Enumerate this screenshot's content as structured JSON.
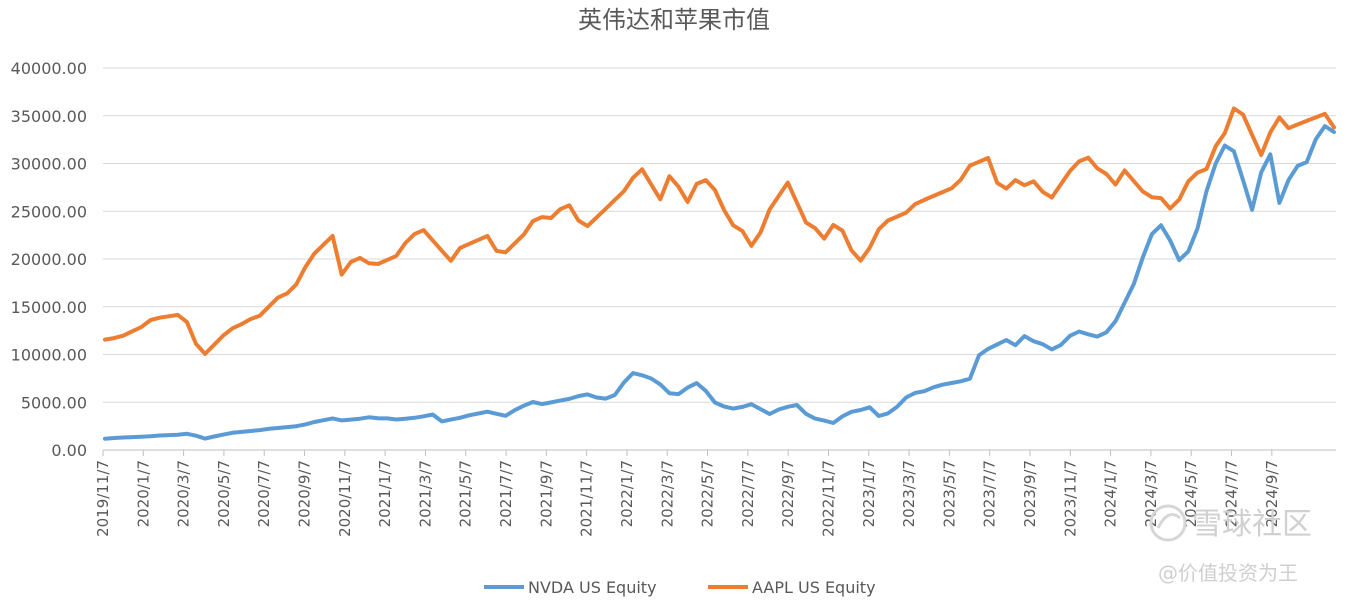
{
  "chart_data": {
    "type": "line",
    "title": "英伟达和苹果市值",
    "xlabel": "",
    "ylabel": "",
    "ylim": [
      0,
      40000
    ],
    "yticks": [
      "40000.00",
      "35000.00",
      "30000.00",
      "25000.00",
      "20000.00",
      "15000.00",
      "10000.00",
      "5000.00",
      "0.00"
    ],
    "xticks": [
      "2019/11/7",
      "2020/1/7",
      "2020/3/7",
      "2020/5/7",
      "2020/7/7",
      "2020/9/7",
      "2020/11/7",
      "2021/1/7",
      "2021/3/7",
      "2021/5/7",
      "2021/7/7",
      "2021/9/7",
      "2021/11/7",
      "2022/1/7",
      "2022/3/7",
      "2022/5/7",
      "2022/7/7",
      "2022/9/7",
      "2022/11/7",
      "2023/1/7",
      "2023/3/7",
      "2023/5/7",
      "2023/7/7",
      "2023/9/7",
      "2023/11/7",
      "2024/1/7",
      "2024/3/7",
      "2024/5/7",
      "2024/7/7",
      "2024/9/7"
    ],
    "grid": true,
    "legend_position": "bottom",
    "series": [
      {
        "name": "NVDA US Equity",
        "color": "#5b9bd5",
        "values": [
          1200,
          1250,
          1300,
          1350,
          1400,
          1450,
          1500,
          1550,
          1600,
          1700,
          1500,
          1200,
          1400,
          1600,
          1800,
          1900,
          2000,
          2100,
          2200,
          2300,
          2400,
          2500,
          2700,
          2900,
          3100,
          3300,
          3100,
          3200,
          3300,
          3400,
          3300,
          3300,
          3200,
          3300,
          3400,
          3500,
          3700,
          3000,
          3200,
          3400,
          3600,
          3800,
          4000,
          3800,
          3600,
          4200,
          4600,
          5000,
          4800,
          5000,
          5200,
          5400,
          5600,
          5800,
          5500,
          5400,
          5800,
          7000,
          8000,
          7800,
          7500,
          6900,
          6000,
          5800,
          6500,
          7000,
          6200,
          5000,
          4600,
          4300,
          4500,
          4800,
          4300,
          3800,
          4200,
          4500,
          4700,
          3800,
          3300,
          3100,
          2800,
          3500,
          4000,
          4200,
          4500,
          3600,
          3800,
          4500,
          5500,
          6000,
          6200,
          6500,
          6800,
          7000,
          7200,
          7500,
          10000,
          10500,
          11000,
          11500,
          11000,
          12000,
          11500,
          11000,
          10500,
          11000,
          12000,
          12500,
          12000,
          11800,
          12300,
          13500,
          15500,
          17500,
          20000,
          22500,
          23500,
          22000,
          20000,
          21000,
          23000,
          27000,
          30000,
          32000,
          31500,
          28000,
          25000,
          29000,
          31000,
          26000,
          28500,
          29500,
          30000,
          32500,
          34000,
          33500
        ]
      },
      {
        "name": "AAPL US Equity",
        "color": "#ed7d31",
        "values": [
          11500,
          11700,
          12000,
          12500,
          13000,
          13500,
          13800,
          14000,
          14200,
          13500,
          11000,
          10000,
          11000,
          12000,
          12800,
          13300,
          13600,
          14000,
          15000,
          16000,
          16500,
          17500,
          19000,
          20500,
          21500,
          22500,
          18500,
          19500,
          20000,
          19500,
          19500,
          20000,
          20500,
          21500,
          22500,
          23000,
          22000,
          21000,
          20000,
          21000,
          21500,
          22000,
          22500,
          21000,
          20500,
          21500,
          22500,
          24000,
          24500,
          24500,
          25000,
          25500,
          24000,
          23500,
          24500,
          25500,
          26000,
          27000,
          28500,
          29500,
          28000,
          26000,
          28500,
          27500,
          26000,
          28000,
          28500,
          27000,
          25000,
          23500,
          23000,
          21500,
          23000,
          25000,
          26500,
          28000,
          26000,
          24000,
          23000,
          22000,
          23500,
          23000,
          21000,
          20000,
          21000,
          23000,
          24000,
          24500,
          25000,
          26000,
          26000,
          26500,
          27000,
          27500,
          28500,
          29500,
          30000,
          30500,
          28000,
          27500,
          28500,
          27500,
          28000,
          27000,
          26500,
          28000,
          29500,
          30000,
          30500,
          29500,
          29000,
          28000,
          29000,
          28000,
          27000,
          26500,
          26500,
          25500,
          26000,
          28000,
          29000,
          29500,
          32000,
          33500,
          35500,
          35000,
          33000,
          31000,
          33500,
          34500,
          33500,
          34000,
          34500,
          35000,
          35500,
          33500
        ]
      }
    ]
  },
  "watermark": {
    "brand": "雪球社区",
    "handle": "@价值投资为王"
  }
}
